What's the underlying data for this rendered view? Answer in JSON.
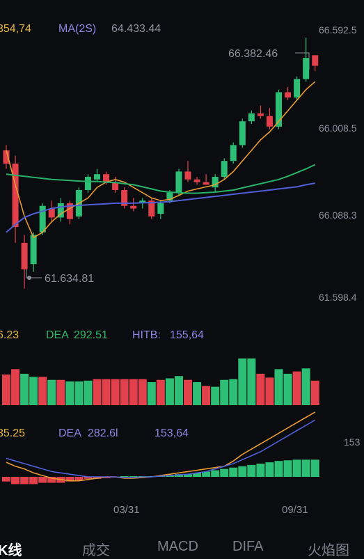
{
  "chart_data": [
    {
      "type": "candlestick",
      "indicators": {
        "ma_a_value": "354,74",
        "ma_b_label": "MA(2S)",
        "ma_b_value": "64.433.44"
      },
      "price_labels": [
        "66.592.5",
        "66.008.5",
        "66.088.3",
        "61.598.4"
      ],
      "annotations": {
        "high": "66.382.46",
        "low": "61.634.81"
      },
      "price_range": [
        61300,
        66700
      ],
      "candles": [
        {
          "o": 64250,
          "h": 64350,
          "l": 63900,
          "c": 64000
        },
        {
          "o": 64000,
          "h": 64150,
          "l": 62500,
          "c": 62800
        },
        {
          "o": 62500,
          "h": 62650,
          "l": 61634.81,
          "c": 62000
        },
        {
          "o": 62100,
          "h": 62700,
          "l": 61950,
          "c": 62650
        },
        {
          "o": 62700,
          "h": 63250,
          "l": 62650,
          "c": 63200
        },
        {
          "o": 63150,
          "h": 63300,
          "l": 62900,
          "c": 62980
        },
        {
          "o": 62980,
          "h": 63350,
          "l": 62900,
          "c": 63250
        },
        {
          "o": 63250,
          "h": 63300,
          "l": 62850,
          "c": 62950
        },
        {
          "o": 63000,
          "h": 63550,
          "l": 62950,
          "c": 63500
        },
        {
          "o": 63500,
          "h": 63800,
          "l": 63450,
          "c": 63750
        },
        {
          "o": 63700,
          "h": 63900,
          "l": 63650,
          "c": 63800
        },
        {
          "o": 63800,
          "h": 63850,
          "l": 63600,
          "c": 63650
        },
        {
          "o": 63650,
          "h": 63750,
          "l": 63450,
          "c": 63500
        },
        {
          "o": 63500,
          "h": 63550,
          "l": 63150,
          "c": 63200
        },
        {
          "o": 63200,
          "h": 63350,
          "l": 63100,
          "c": 63150
        },
        {
          "o": 63250,
          "h": 63350,
          "l": 63150,
          "c": 63300
        },
        {
          "o": 63300,
          "h": 63350,
          "l": 62950,
          "c": 63000
        },
        {
          "o": 63050,
          "h": 63300,
          "l": 62950,
          "c": 63250
        },
        {
          "o": 63300,
          "h": 63500,
          "l": 63250,
          "c": 63450
        },
        {
          "o": 63450,
          "h": 63900,
          "l": 63400,
          "c": 63850
        },
        {
          "o": 63850,
          "h": 64050,
          "l": 63650,
          "c": 63700
        },
        {
          "o": 63700,
          "h": 63750,
          "l": 63600,
          "c": 63650
        },
        {
          "o": 63650,
          "h": 63800,
          "l": 63600,
          "c": 63600
        },
        {
          "o": 63550,
          "h": 63800,
          "l": 63450,
          "c": 63750
        },
        {
          "o": 63750,
          "h": 64100,
          "l": 63700,
          "c": 64050
        },
        {
          "o": 64050,
          "h": 64400,
          "l": 64000,
          "c": 64350
        },
        {
          "o": 64350,
          "h": 64850,
          "l": 64300,
          "c": 64800
        },
        {
          "o": 64800,
          "h": 65000,
          "l": 64750,
          "c": 64950
        },
        {
          "o": 64950,
          "h": 65100,
          "l": 64850,
          "c": 64900
        },
        {
          "o": 64900,
          "h": 65050,
          "l": 64650,
          "c": 64700
        },
        {
          "o": 64700,
          "h": 65400,
          "l": 64650,
          "c": 65350
        },
        {
          "o": 65350,
          "h": 65450,
          "l": 65200,
          "c": 65250
        },
        {
          "o": 65250,
          "h": 65650,
          "l": 65200,
          "c": 65600
        },
        {
          "o": 65600,
          "h": 66382.46,
          "l": 65550,
          "c": 66000
        },
        {
          "o": 66050,
          "h": 66050,
          "l": 65750,
          "c": 65850
        }
      ],
      "ma_short": [
        64250,
        63600,
        63000,
        62600,
        62700,
        62900,
        63050,
        63150,
        63250,
        63350,
        63550,
        63650,
        63700,
        63650,
        63550,
        63450,
        63350,
        63300,
        63320,
        63400,
        63480,
        63520,
        63560,
        63600,
        63700,
        63850,
        64050,
        64250,
        64450,
        64600,
        64800,
        65000,
        65200,
        65400,
        65550
      ],
      "ma_mid": [
        63800,
        63780,
        63760,
        63740,
        63720,
        63700,
        63690,
        63680,
        63670,
        63660,
        63660,
        63650,
        63640,
        63620,
        63600,
        63560,
        63520,
        63480,
        63460,
        63450,
        63440,
        63440,
        63450,
        63460,
        63480,
        63500,
        63540,
        63580,
        63620,
        63660,
        63700,
        63760,
        63830,
        63900,
        63980
      ],
      "ma_long": [
        62700,
        62850,
        62980,
        63050,
        63100,
        63150,
        63180,
        63200,
        63210,
        63220,
        63230,
        63240,
        63250,
        63250,
        63250,
        63260,
        63260,
        63270,
        63280,
        63300,
        63320,
        63340,
        63360,
        63380,
        63400,
        63420,
        63440,
        63460,
        63480,
        63500,
        63520,
        63540,
        63560,
        63600,
        63630
      ]
    },
    {
      "type": "bar",
      "indicators": {
        "val_a": "6.23",
        "dea_label": "DEA",
        "dea_value": "292.51",
        "hitb_label": "HITB:",
        "hitb_value": "155,64"
      },
      "values": [
        40,
        47,
        41,
        37,
        37,
        33,
        33,
        31,
        31,
        32,
        34,
        34,
        34,
        34,
        34,
        34,
        30,
        33,
        35,
        38,
        33,
        30,
        25,
        24,
        33,
        34,
        61,
        61,
        41,
        36,
        47,
        41,
        44,
        48,
        32
      ],
      "directions": [
        "down",
        "down",
        "up",
        "up",
        "down",
        "up",
        "down",
        "up",
        "up",
        "up",
        "down",
        "down",
        "down",
        "down",
        "down",
        "down",
        "up",
        "down",
        "up",
        "up",
        "down",
        "up",
        "down",
        "up",
        "up",
        "up",
        "up",
        "up",
        "down",
        "down",
        "up",
        "up",
        "down",
        "up",
        "down"
      ]
    },
    {
      "type": "macd",
      "indicators": {
        "val_a": "35.25",
        "dea_label": "DEA",
        "dea_value": "282.6l",
        "val_c": "153,64",
        "right_label": "153"
      },
      "x_labels": [
        "03/31",
        "09/31"
      ],
      "histogram": [
        -7,
        -11,
        -11,
        -11,
        -9,
        -9,
        -9,
        -7,
        -6,
        -3,
        -3,
        -2,
        -1,
        0,
        0,
        1,
        1,
        2,
        2,
        4,
        4,
        6,
        8,
        10,
        12,
        14,
        16,
        18,
        20,
        22,
        24,
        25,
        26,
        26,
        26
      ],
      "dif": [
        22,
        16,
        12,
        6,
        2,
        -2,
        -4,
        -6,
        -6,
        -4,
        -2,
        0,
        0,
        -2,
        -2,
        -1,
        0,
        2,
        4,
        6,
        8,
        10,
        12,
        14,
        16,
        24,
        34,
        42,
        50,
        58,
        66,
        74,
        82,
        90,
        98
      ],
      "dea": [
        28,
        24,
        20,
        16,
        12,
        8,
        6,
        4,
        2,
        0,
        0,
        0,
        0,
        -1,
        -1,
        0,
        0,
        1,
        2,
        3,
        4,
        6,
        8,
        12,
        16,
        20,
        26,
        32,
        38,
        46,
        54,
        62,
        70,
        78,
        86
      ]
    }
  ],
  "tabs": [
    "K线",
    "成交",
    "MACD",
    "DIFA",
    "火焰图"
  ],
  "colors": {
    "up": "#2dbf75",
    "down": "#e2414c",
    "ma_short": "#e89a32",
    "ma_mid": "#27b46a",
    "ma_long": "#5060d8",
    "label": "#8d919b",
    "ma_a_text": "#e6b840",
    "ma_b_text": "#8e86e6",
    "dea_green": "#33b872",
    "hitb_purple": "#8f84e8",
    "grid": "#1d2028"
  }
}
